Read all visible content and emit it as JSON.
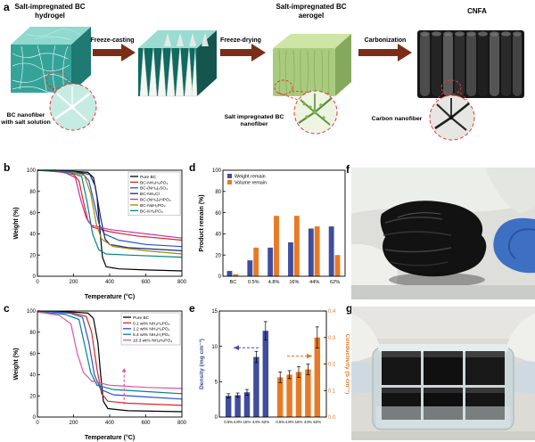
{
  "panels": {
    "a": "a",
    "b": "b",
    "c": "c",
    "d": "d",
    "e": "e",
    "f": "f",
    "g": "g"
  },
  "schematic": {
    "titles": [
      "Salt-impregnated BC hydrogel",
      "Salt-impregnated BC aerogel",
      "CNFA"
    ],
    "arrows": [
      "Freeze-casting",
      "Freeze-drying",
      "Carbonization"
    ],
    "insets": [
      "BC nanofiber with salt solution",
      "Salt impregnated BC nanofiber",
      "Carbon nanofiber"
    ]
  },
  "chart_data": [
    {
      "panel": "b",
      "type": "line",
      "xlabel": "Temperature (°C)",
      "ylabel": "Weight (%)",
      "xlim": [
        0,
        800
      ],
      "ylim": [
        0,
        100
      ],
      "xticks": [
        0,
        200,
        400,
        600,
        800
      ],
      "yticks": [
        0,
        20,
        40,
        60,
        80,
        100
      ],
      "legend_position": "top-right",
      "series": [
        {
          "name": "Pure BC",
          "color": "#000000",
          "points": [
            [
              0,
              100
            ],
            [
              100,
              100
            ],
            [
              200,
              99
            ],
            [
              280,
              98
            ],
            [
              310,
              93
            ],
            [
              330,
              75
            ],
            [
              345,
              45
            ],
            [
              360,
              18
            ],
            [
              380,
              9
            ],
            [
              450,
              7
            ],
            [
              600,
              6
            ],
            [
              800,
              5
            ]
          ]
        },
        {
          "name": "BC-NH₄H₂PO₄",
          "color": "#d42727",
          "points": [
            [
              0,
              100
            ],
            [
              100,
              99
            ],
            [
              200,
              96
            ],
            [
              230,
              90
            ],
            [
              255,
              70
            ],
            [
              280,
              52
            ],
            [
              310,
              46
            ],
            [
              400,
              42
            ],
            [
              550,
              38
            ],
            [
              800,
              34
            ]
          ]
        },
        {
          "name": "BC-(NH₄)₂SO₄",
          "color": "#2750d4",
          "points": [
            [
              0,
              100
            ],
            [
              150,
              99
            ],
            [
              250,
              97
            ],
            [
              285,
              90
            ],
            [
              310,
              72
            ],
            [
              340,
              50
            ],
            [
              370,
              40
            ],
            [
              450,
              34
            ],
            [
              600,
              30
            ],
            [
              800,
              28
            ]
          ]
        },
        {
          "name": "BC-NH₄Cl",
          "color": "#1a2a78",
          "points": [
            [
              0,
              100
            ],
            [
              200,
              99
            ],
            [
              290,
              96
            ],
            [
              320,
              85
            ],
            [
              350,
              55
            ],
            [
              375,
              35
            ],
            [
              400,
              30
            ],
            [
              500,
              27
            ],
            [
              800,
              24
            ]
          ]
        },
        {
          "name": "BC-(NH₄)₂HPO₄",
          "color": "#cc2fa8",
          "points": [
            [
              0,
              100
            ],
            [
              150,
              98
            ],
            [
              210,
              93
            ],
            [
              240,
              72
            ],
            [
              270,
              55
            ],
            [
              300,
              48
            ],
            [
              400,
              44
            ],
            [
              600,
              40
            ],
            [
              800,
              36
            ]
          ]
        },
        {
          "name": "BC-NaH₂PO₄",
          "color": "#a08800",
          "points": [
            [
              0,
              100
            ],
            [
              200,
              98
            ],
            [
              260,
              95
            ],
            [
              295,
              78
            ],
            [
              325,
              50
            ],
            [
              355,
              35
            ],
            [
              420,
              28
            ],
            [
              600,
              24
            ],
            [
              800,
              21
            ]
          ]
        },
        {
          "name": "BC-KH₂PO₄",
          "color": "#00848a",
          "points": [
            [
              0,
              100
            ],
            [
              180,
              98
            ],
            [
              245,
              94
            ],
            [
              275,
              70
            ],
            [
              305,
              40
            ],
            [
              340,
              25
            ],
            [
              380,
              21
            ],
            [
              500,
              20
            ],
            [
              800,
              18
            ]
          ]
        }
      ]
    },
    {
      "panel": "c",
      "type": "line",
      "xlabel": "Temperature (°C)",
      "ylabel": "Weight (%)",
      "xlim": [
        0,
        800
      ],
      "ylim": [
        0,
        100
      ],
      "xticks": [
        0,
        200,
        400,
        600,
        800
      ],
      "yticks": [
        0,
        20,
        40,
        60,
        80,
        100
      ],
      "legend_position": "top-right",
      "annotation": {
        "x": 480,
        "from": 12,
        "to": 46,
        "color": "#e64fa0"
      },
      "series": [
        {
          "name": "Pure BC",
          "color": "#000000",
          "points": [
            [
              0,
              100
            ],
            [
              200,
              99
            ],
            [
              280,
              98
            ],
            [
              310,
              93
            ],
            [
              335,
              70
            ],
            [
              350,
              40
            ],
            [
              365,
              15
            ],
            [
              390,
              8
            ],
            [
              500,
              6
            ],
            [
              800,
              5
            ]
          ]
        },
        {
          "name": "0.1 wt% NH₄H₂PO₄",
          "color": "#d42727",
          "points": [
            [
              0,
              100
            ],
            [
              200,
              98
            ],
            [
              270,
              95
            ],
            [
              300,
              80
            ],
            [
              330,
              45
            ],
            [
              355,
              22
            ],
            [
              390,
              15
            ],
            [
              500,
              13
            ],
            [
              800,
              11
            ]
          ]
        },
        {
          "name": "1.2 wt% NH₄H₂PO₄",
          "color": "#2750d4",
          "points": [
            [
              0,
              100
            ],
            [
              180,
              98
            ],
            [
              250,
              94
            ],
            [
              285,
              70
            ],
            [
              315,
              40
            ],
            [
              350,
              26
            ],
            [
              420,
              21
            ],
            [
              600,
              19
            ],
            [
              800,
              17
            ]
          ]
        },
        {
          "name": "5.4 wt% NH₄H₂PO₄",
          "color": "#00848a",
          "points": [
            [
              0,
              99
            ],
            [
              150,
              97
            ],
            [
              230,
              92
            ],
            [
              265,
              65
            ],
            [
              295,
              42
            ],
            [
              330,
              30
            ],
            [
              420,
              26
            ],
            [
              600,
              24
            ],
            [
              800,
              22
            ]
          ]
        },
        {
          "name": "10.3 wt% NH₄H₂PO₄",
          "color": "#e64fa0",
          "points": [
            [
              0,
              99
            ],
            [
              120,
              96
            ],
            [
              185,
              88
            ],
            [
              220,
              60
            ],
            [
              255,
              42
            ],
            [
              300,
              34
            ],
            [
              400,
              30
            ],
            [
              600,
              28
            ],
            [
              800,
              27
            ]
          ]
        }
      ]
    },
    {
      "panel": "d",
      "type": "bar",
      "ylabel": "Product remain (%)",
      "ylim": [
        0,
        100
      ],
      "yticks": [
        0,
        20,
        40,
        60,
        80,
        100
      ],
      "categories": [
        "BC",
        "0.5%",
        "4.8%",
        "16%",
        "44%",
        "62%"
      ],
      "legend_position": "top-left",
      "series": [
        {
          "name": "Weight remain",
          "color": "#3f4d9e",
          "values": [
            5,
            15,
            27,
            32,
            45,
            47
          ]
        },
        {
          "name": "Volume remain",
          "color": "#e87a25",
          "values": [
            2,
            27,
            57,
            57,
            47,
            20
          ]
        }
      ]
    },
    {
      "panel": "e",
      "type": "bar-dual",
      "ylabel_left": "Density (mg cm⁻³)",
      "ylabel_right": "Conductivity (S cm⁻¹)",
      "ylim_left": [
        0,
        15
      ],
      "yticks_left": [
        0,
        5,
        10,
        15
      ],
      "ylim_right": [
        0,
        0.4
      ],
      "yticks_right": [
        "0.0",
        "0.1",
        "0.2",
        "0.3",
        "0.4"
      ],
      "categories": [
        "0.5%",
        "4.8%",
        "16%",
        "44%",
        "62%"
      ],
      "density": {
        "name": "Density",
        "color": "#3f4d9e",
        "values": [
          3.0,
          3.1,
          3.5,
          8.5,
          12.2
        ],
        "errors": [
          0.3,
          0.3,
          0.4,
          0.8,
          1.3
        ]
      },
      "conductivity": {
        "name": "Conductivity",
        "color": "#e87a25",
        "values": [
          0.15,
          0.16,
          0.17,
          0.18,
          0.3
        ],
        "errors": [
          0.02,
          0.015,
          0.02,
          0.02,
          0.04
        ]
      }
    }
  ]
}
